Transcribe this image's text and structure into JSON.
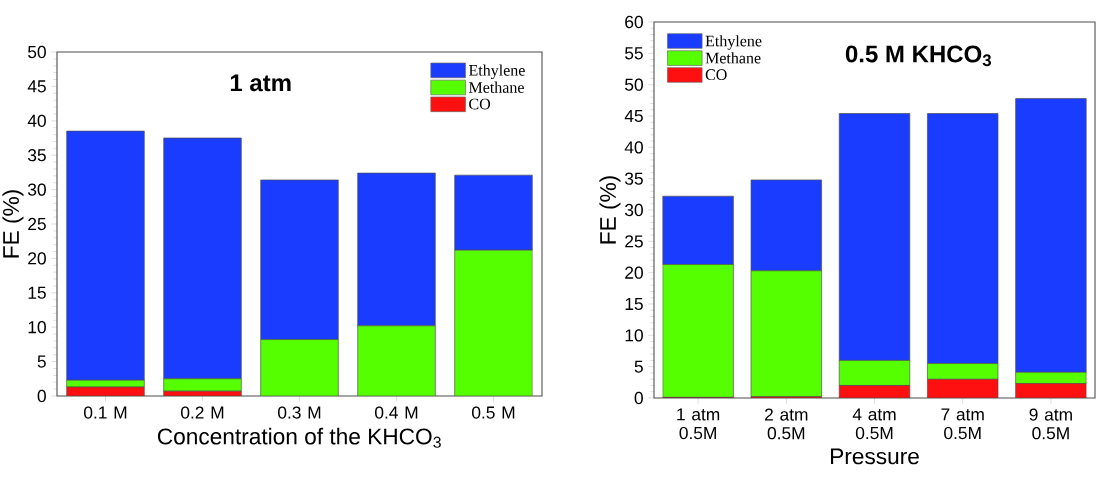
{
  "chart_data": [
    {
      "type": "bar",
      "stacked": true,
      "title": "1 atm",
      "xlabel": "Concentration of the KHCO$_{3}$",
      "ylabel": "FE (%)",
      "categories": [
        "0.1 M",
        "0.2 M",
        "0.3 M",
        "0.4 M",
        "0.5 M"
      ],
      "series": [
        {
          "name": "CO",
          "color": "#ff1010",
          "values": [
            1.3,
            0.7,
            null,
            null,
            null
          ]
        },
        {
          "name": "Methane",
          "color": "#55ff00",
          "values": [
            1.0,
            1.8,
            8.2,
            10.2,
            21.2
          ]
        },
        {
          "name": "Ethylene",
          "color": "#1a3cff",
          "values": [
            36.2,
            35.0,
            23.2,
            22.2,
            10.9
          ]
        }
      ],
      "ylim": [
        0,
        50
      ],
      "yticks": [
        0,
        5,
        10,
        15,
        20,
        25,
        30,
        35,
        40,
        45,
        50
      ],
      "legend": "top right"
    },
    {
      "type": "bar",
      "stacked": true,
      "title": "0.5 M KHCO$_{3}$",
      "xlabel": "Pressure",
      "ylabel": "FE (%)",
      "categories": [
        "1 atm 0.5M",
        "2 atm 0.5M",
        "4 atm 0.5M",
        "7 atm 0.5M",
        "9 atm 0.5M"
      ],
      "series": [
        {
          "name": "CO",
          "color": "#ff1010",
          "values": [
            0.1,
            0.2,
            2.0,
            3.0,
            2.3
          ]
        },
        {
          "name": "Methane",
          "color": "#55ff00",
          "values": [
            21.2,
            20.1,
            4.0,
            2.5,
            1.8
          ]
        },
        {
          "name": "Ethylene",
          "color": "#1a3cff",
          "values": [
            10.9,
            14.5,
            39.4,
            39.9,
            43.7
          ]
        }
      ],
      "ylim": [
        0,
        60
      ],
      "yticks": [
        0,
        5,
        10,
        15,
        20,
        25,
        30,
        35,
        40,
        45,
        50,
        55,
        60
      ],
      "legend": "top left"
    }
  ]
}
